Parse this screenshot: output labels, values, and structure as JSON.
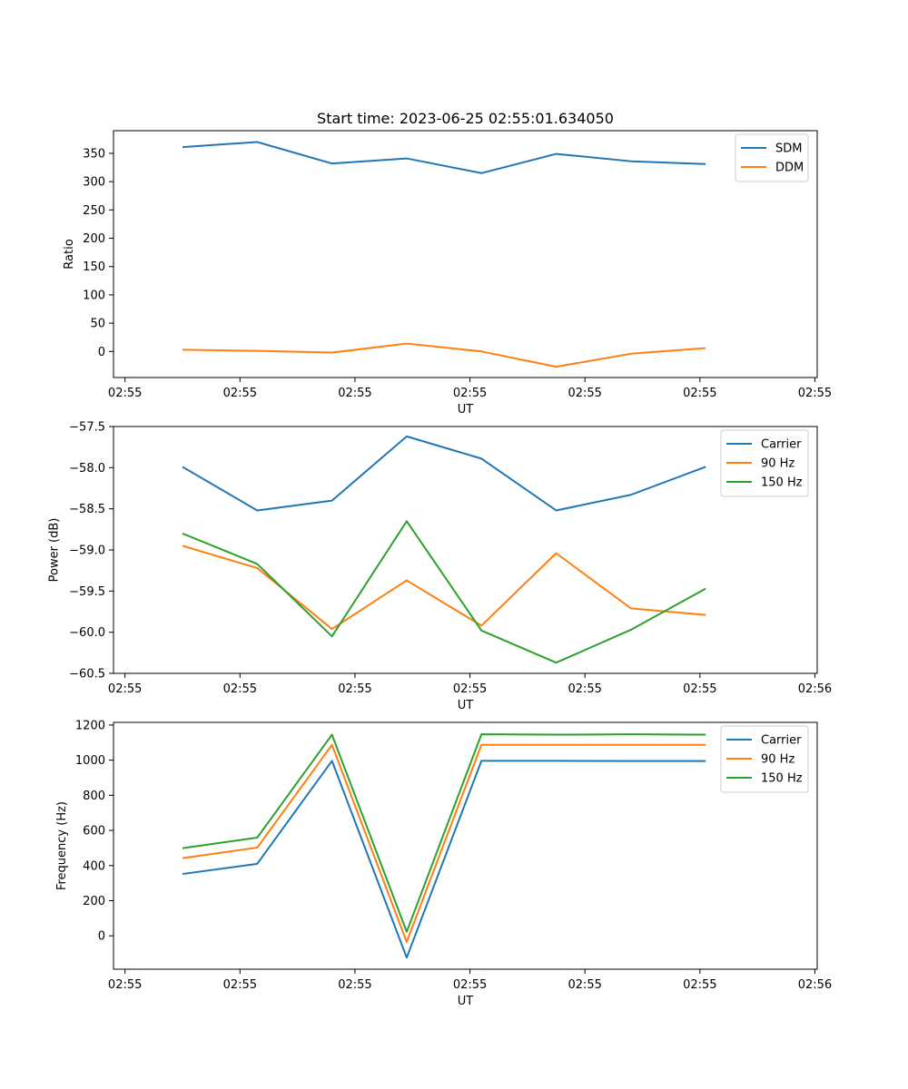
{
  "figure": {
    "title": "Start time: 2023-06-25 02:55:01.634050",
    "background": "#ffffff"
  },
  "chart_data": [
    {
      "type": "line",
      "title": "Start time: 2023-06-25 02:55:01.634050",
      "xlabel": "UT",
      "ylabel": "Ratio",
      "x_ticks": [
        "02:55",
        "02:55",
        "02:55",
        "02:55",
        "02:55",
        "02:55",
        "02:55"
      ],
      "x_tick_values": [
        0,
        1,
        2,
        3,
        4,
        5,
        6
      ],
      "y_ticks": [
        0,
        50,
        100,
        150,
        200,
        250,
        300,
        350
      ],
      "xlim": [
        -0.1,
        6.02
      ],
      "ylim": [
        -46,
        390
      ],
      "grid": false,
      "legend_position": "upper right",
      "x": [
        0.5,
        1.15,
        1.8,
        2.45,
        3.1,
        3.75,
        4.4,
        5.05
      ],
      "series": [
        {
          "name": "SDM",
          "color": "#1f77b4",
          "values": [
            361,
            370,
            332,
            341,
            315,
            349,
            336,
            331
          ]
        },
        {
          "name": "DDM",
          "color": "#ff7f0e",
          "values": [
            3,
            1,
            -2,
            14,
            0,
            -27,
            -4,
            6
          ]
        }
      ]
    },
    {
      "type": "line",
      "xlabel": "UT",
      "ylabel": "Power (dB)",
      "x_ticks": [
        "02:55",
        "02:55",
        "02:55",
        "02:55",
        "02:55",
        "02:55",
        "02:56"
      ],
      "x_tick_values": [
        0,
        1,
        2,
        3,
        4,
        5,
        6
      ],
      "y_ticks": [
        -60.5,
        -60.0,
        -59.5,
        -59.0,
        -58.5,
        -58.0,
        -57.5
      ],
      "y_tick_labels": [
        "−60.5",
        "−60.0",
        "−59.5",
        "−59.0",
        "−58.5",
        "−58.0",
        "−57.5"
      ],
      "xlim": [
        -0.1,
        6.02
      ],
      "ylim": [
        -60.5,
        -57.5
      ],
      "grid": false,
      "legend_position": "upper right",
      "x": [
        0.5,
        1.15,
        1.8,
        2.45,
        3.1,
        3.75,
        4.4,
        5.05
      ],
      "series": [
        {
          "name": "Carrier",
          "color": "#1f77b4",
          "values": [
            -57.99,
            -58.52,
            -58.4,
            -57.62,
            -57.89,
            -58.52,
            -58.33,
            -57.99
          ]
        },
        {
          "name": "90 Hz",
          "color": "#ff7f0e",
          "values": [
            -58.95,
            -59.22,
            -59.96,
            -59.37,
            -59.92,
            -59.04,
            -59.71,
            -59.79
          ]
        },
        {
          "name": "150 Hz",
          "color": "#2ca02c",
          "values": [
            -58.8,
            -59.17,
            -60.05,
            -58.65,
            -59.98,
            -60.37,
            -59.97,
            -59.47
          ]
        }
      ]
    },
    {
      "type": "line",
      "xlabel": "UT",
      "ylabel": "Frequency (Hz)",
      "x_ticks": [
        "02:55",
        "02:55",
        "02:55",
        "02:55",
        "02:55",
        "02:55",
        "02:56"
      ],
      "x_tick_values": [
        0,
        1,
        2,
        3,
        4,
        5,
        6
      ],
      "y_ticks": [
        0,
        200,
        400,
        600,
        800,
        1000,
        1200
      ],
      "xlim": [
        -0.1,
        6.02
      ],
      "ylim": [
        -190,
        1215
      ],
      "grid": false,
      "legend_position": "upper right",
      "x": [
        0.5,
        1.15,
        1.8,
        2.45,
        3.1,
        3.75,
        4.4,
        5.05
      ],
      "series": [
        {
          "name": "Carrier",
          "color": "#1f77b4",
          "values": [
            352,
            410,
            996,
            -124,
            996,
            996,
            995,
            995
          ]
        },
        {
          "name": "90 Hz",
          "color": "#ff7f0e",
          "values": [
            442,
            502,
            1087,
            -35,
            1087,
            1087,
            1087,
            1087
          ]
        },
        {
          "name": "150 Hz",
          "color": "#2ca02c",
          "values": [
            499,
            559,
            1145,
            23,
            1147,
            1145,
            1147,
            1145
          ]
        }
      ]
    }
  ]
}
